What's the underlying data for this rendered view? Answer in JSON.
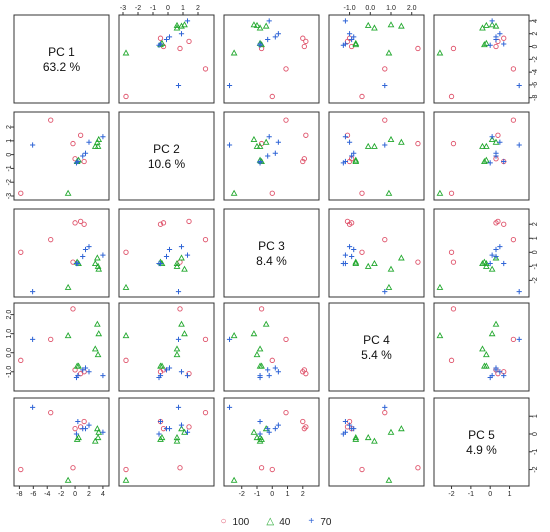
{
  "chart_data": {
    "type": "scatter",
    "variables": [
      {
        "name": "PC 1",
        "variance": "63.2 %"
      },
      {
        "name": "PC 2",
        "variance": "10.6 %"
      },
      {
        "name": "PC 3",
        "variance": "8.4 %"
      },
      {
        "name": "PC 4",
        "variance": "5.4 %"
      },
      {
        "name": "PC 5",
        "variance": "4.9 %"
      }
    ],
    "ranges": [
      [
        -8.2,
        4.3
      ],
      [
        -3.0,
        2.8
      ],
      [
        -2.9,
        2.8
      ],
      [
        -1.8,
        2.4
      ],
      [
        -2.7,
        1.8
      ]
    ],
    "ticks": [
      [
        -8,
        -6,
        -4,
        -2,
        0,
        2,
        4
      ],
      [
        -3,
        -2,
        -1,
        0,
        1,
        2
      ],
      [
        -2,
        -1,
        0,
        1,
        2
      ],
      [
        -1.0,
        0.0,
        1.0,
        2.0
      ],
      [
        -2,
        -1,
        0,
        1
      ]
    ],
    "series": [
      {
        "name": "100",
        "marker": "circle",
        "color": "#df536b",
        "points": [
          [
            -7.8,
            -2.8,
            0.0,
            -0.4,
            -2.0
          ],
          [
            -3.5,
            2.5,
            0.9,
            0.7,
            1.2
          ],
          [
            0.0,
            -0.3,
            2.1,
            -0.9,
            0.3
          ],
          [
            0.8,
            1.4,
            2.2,
            -1.1,
            0.4
          ],
          [
            1.3,
            -0.5,
            2.0,
            -1.0,
            0.7
          ],
          [
            -0.3,
            0.8,
            -0.7,
            2.3,
            -1.9
          ]
        ]
      },
      {
        "name": "40",
        "marker": "triangle",
        "color": "#22a82e",
        "points": [
          [
            -1.0,
            -2.8,
            -2.5,
            0.9,
            -2.6
          ],
          [
            3.2,
            0.9,
            -0.4,
            1.5,
            0.3
          ],
          [
            3.3,
            0.6,
            -1.0,
            -0.1,
            -0.2
          ],
          [
            3.4,
            1.1,
            -1.2,
            1.0,
            0.1
          ],
          [
            2.9,
            0.6,
            -0.8,
            0.2,
            -0.4
          ],
          [
            0.5,
            -0.4,
            -0.8,
            -0.7,
            -0.2
          ],
          [
            0.3,
            -0.5,
            -0.7,
            -0.7,
            -0.3
          ]
        ]
      },
      {
        "name": "70",
        "marker": "plus",
        "color": "#2f64d6",
        "points": [
          [
            -6.1,
            0.7,
            -2.8,
            0.7,
            1.5
          ],
          [
            0.4,
            -0.5,
            -0.8,
            -1.2,
            0.7
          ],
          [
            1.1,
            -0.1,
            -0.3,
            -0.9,
            0.3
          ],
          [
            1.5,
            0.1,
            0.2,
            -0.8,
            0.3
          ],
          [
            2.0,
            0.9,
            0.4,
            -1.0,
            0.5
          ],
          [
            4.0,
            1.3,
            -0.2,
            -1.2,
            0.1
          ],
          [
            0.2,
            -0.6,
            -0.8,
            -1.3,
            0.0
          ]
        ]
      }
    ]
  },
  "legend": {
    "items": [
      {
        "label": "100",
        "symbol": "○",
        "color": "#df536b"
      },
      {
        "label": "40",
        "symbol": "△",
        "color": "#22a82e"
      },
      {
        "label": "70",
        "symbol": "+",
        "color": "#2f64d6"
      }
    ]
  }
}
